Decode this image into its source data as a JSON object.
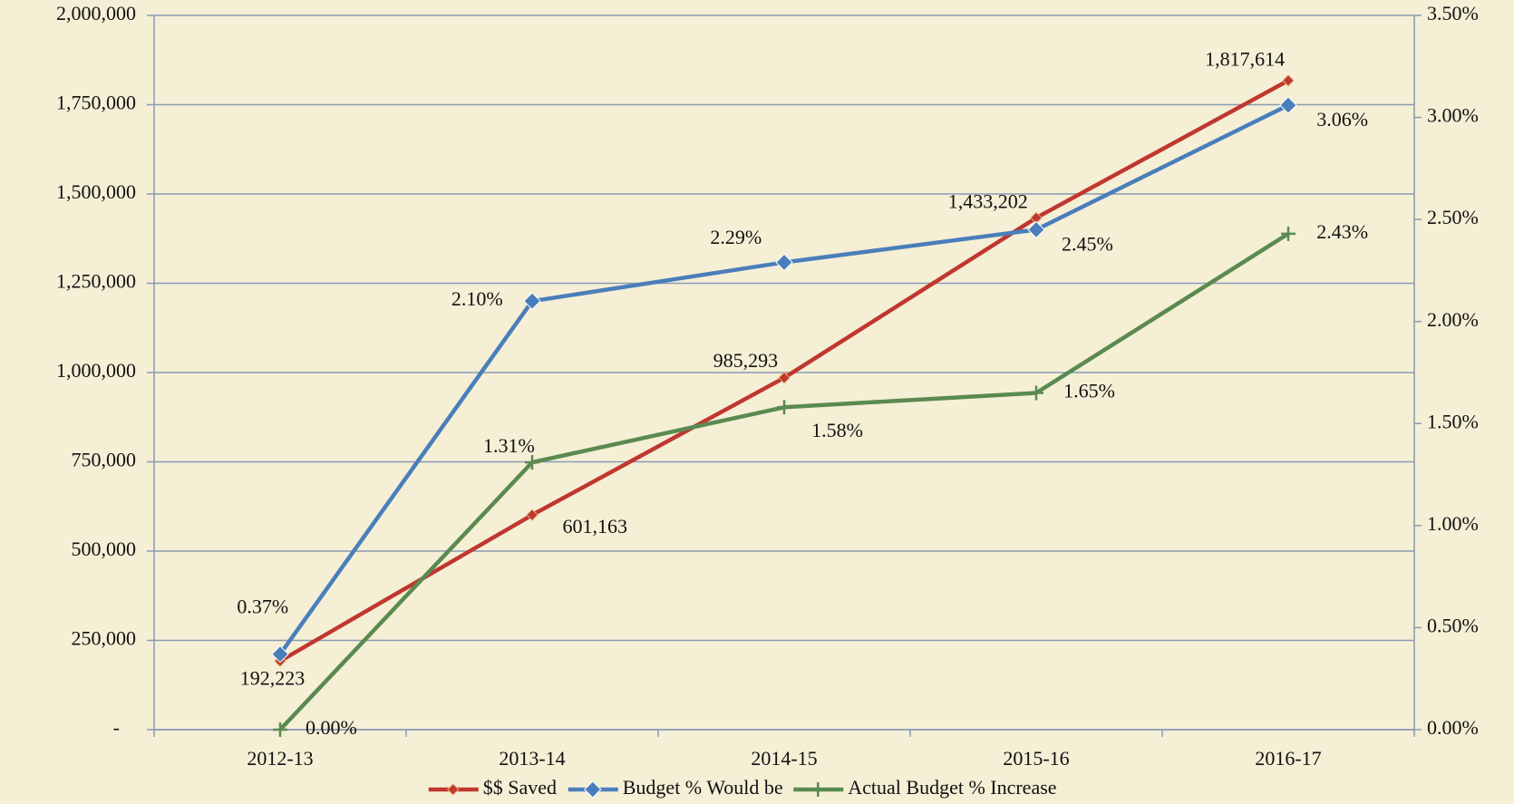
{
  "chart_data": {
    "type": "line",
    "categories": [
      "2012-13",
      "2013-14",
      "2014-15",
      "2015-16",
      "2016-17"
    ],
    "series": [
      {
        "name": "$$ Saved",
        "color": "#c0372f",
        "marker": "diamond",
        "values": [
          192223,
          601163,
          985293,
          1433202,
          1817614
        ],
        "value_labels": [
          "192,223",
          "601,163",
          "985,293",
          "1,433,202",
          "1,817,614"
        ]
      },
      {
        "name": "Budget % Would be",
        "color": "#4a7ebb",
        "marker": "diamond",
        "axis": "y2",
        "values": [
          0.37,
          2.1,
          2.29,
          2.45,
          3.06
        ],
        "value_labels": [
          "0.37%",
          "2.10%",
          "2.29%",
          "2.45%",
          "3.06%"
        ]
      },
      {
        "name": "Actual Budget % Increase",
        "color": "#5a8a50",
        "marker": "plus",
        "axis": "y2",
        "values": [
          0.0,
          1.31,
          1.58,
          1.65,
          2.43
        ],
        "value_labels": [
          "0.00%",
          "1.31%",
          "1.58%",
          "1.65%",
          "2.43%"
        ]
      }
    ],
    "ylim": [
      0,
      2000000
    ],
    "yticks": [
      {
        "value": 0,
        "label": "-"
      },
      {
        "value": 250000,
        "label": "250,000"
      },
      {
        "value": 500000,
        "label": "500,000"
      },
      {
        "value": 750000,
        "label": "750,000"
      },
      {
        "value": 1000000,
        "label": "1,000,000"
      },
      {
        "value": 1250000,
        "label": "1,250,000"
      },
      {
        "value": 1500000,
        "label": "1,500,000"
      },
      {
        "value": 1750000,
        "label": "1,750,000"
      },
      {
        "value": 2000000,
        "label": "2,000,000"
      }
    ],
    "y2lim": [
      0,
      3.5
    ],
    "y2ticks": [
      {
        "value": 0,
        "label": "0.00%"
      },
      {
        "value": 0.5,
        "label": "0.50%"
      },
      {
        "value": 1,
        "label": "1.00%"
      },
      {
        "value": 1.5,
        "label": "1.50%"
      },
      {
        "value": 2,
        "label": "2.00%"
      },
      {
        "value": 2.5,
        "label": "2.50%"
      },
      {
        "value": 3,
        "label": "3.00%"
      },
      {
        "value": 3.5,
        "label": "3.50%"
      }
    ],
    "grid": true,
    "legend": "bottom"
  }
}
